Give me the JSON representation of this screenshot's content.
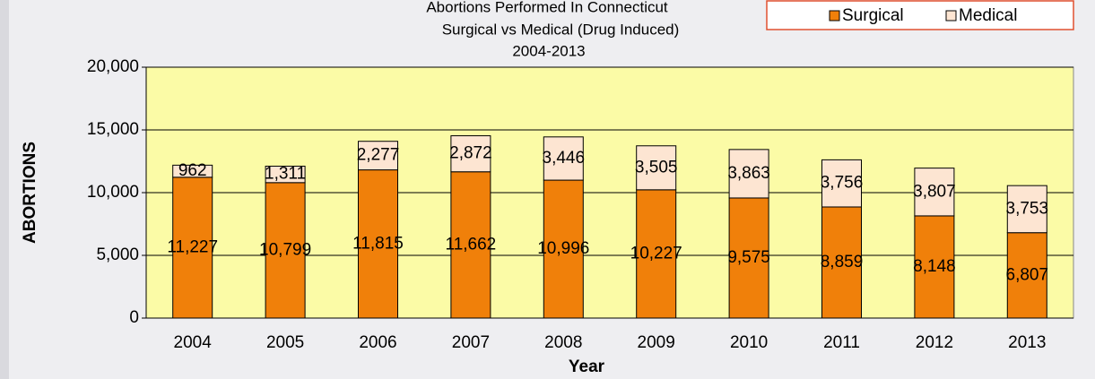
{
  "chart_data": {
    "type": "stacked_bar",
    "title": [
      "Abortions Performed In Connecticut",
      "Surgical vs Medical (Drug Induced)",
      "2004-2013"
    ],
    "x_label": "Year",
    "y_label": "ABORTIONS",
    "categories": [
      "2004",
      "2005",
      "2006",
      "2007",
      "2008",
      "2009",
      "2010",
      "2011",
      "2012",
      "2013"
    ],
    "series": [
      {
        "name": "Surgical",
        "color": "#f0800a",
        "values": [
          11227,
          10799,
          11815,
          11662,
          10996,
          10227,
          9575,
          8859,
          8148,
          6807
        ],
        "value_labels": [
          "11,227",
          "10,799",
          "11,815",
          "11,662",
          "10,996",
          "10,227",
          "9,575",
          "8,859",
          "8,148",
          "6,807"
        ]
      },
      {
        "name": "Medical",
        "color": "#fde5d2",
        "values": [
          962,
          1311,
          2277,
          2872,
          3446,
          3505,
          3863,
          3756,
          3807,
          3753
        ],
        "value_labels": [
          "962",
          "1,311",
          "2,277",
          "2,872",
          "3,446",
          "3,505",
          "3,863",
          "3,756",
          "3,807",
          "3,753"
        ]
      }
    ],
    "ylim": [
      0,
      20000
    ],
    "yticks": [
      {
        "value": 0,
        "label": "0"
      },
      {
        "value": 5000,
        "label": "5,000"
      },
      {
        "value": 10000,
        "label": "10,000"
      },
      {
        "value": 15000,
        "label": "15,000"
      },
      {
        "value": 20000,
        "label": "20,000"
      }
    ],
    "grid": true,
    "legend": "top-right",
    "plot_color": "#fbfba6"
  }
}
